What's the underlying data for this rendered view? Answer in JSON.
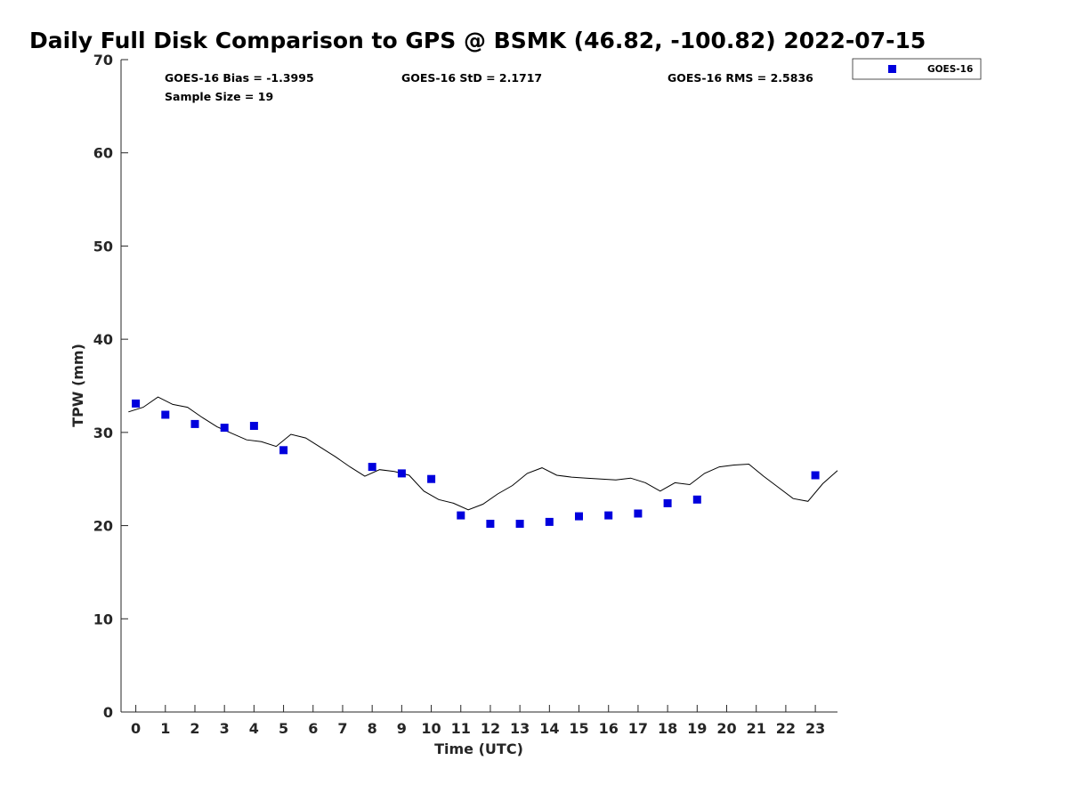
{
  "chart_data": {
    "type": "scatter",
    "title": "Daily Full Disk Comparison to GPS @ BSMK (46.82, -100.82) 2022-07-15",
    "xlabel": "Time (UTC)",
    "ylabel": "TPW (mm)",
    "xlim": [
      -0.5,
      23.75
    ],
    "ylim": [
      0,
      70
    ],
    "xticks": [
      0,
      1,
      2,
      3,
      4,
      5,
      6,
      7,
      8,
      9,
      10,
      11,
      12,
      13,
      14,
      15,
      16,
      17,
      18,
      19,
      20,
      21,
      22,
      23
    ],
    "yticks": [
      0,
      10,
      20,
      30,
      40,
      50,
      60,
      70
    ],
    "grid": false,
    "legend_position": "outside-top-right",
    "stats": {
      "bias": "GOES-16 Bias = -1.3995",
      "std": "GOES-16 StD = 2.1717",
      "rms": "GOES-16 RMS = 2.5836",
      "sample": "Sample Size = 19"
    },
    "series": [
      {
        "name": "GOES-16",
        "kind": "scatter",
        "marker": "square",
        "color": "#0000dd",
        "x": [
          0,
          1,
          2,
          3,
          4,
          5,
          8,
          9,
          10,
          11,
          12,
          13,
          14,
          15,
          16,
          17,
          18,
          19,
          23
        ],
        "y": [
          33.1,
          31.9,
          30.9,
          30.5,
          30.7,
          28.1,
          26.3,
          25.6,
          25.0,
          21.1,
          20.2,
          20.2,
          20.4,
          21.0,
          21.1,
          21.3,
          22.4,
          22.8,
          25.4
        ]
      },
      {
        "kind": "line",
        "color": "#000000",
        "x": [
          -0.25,
          0.25,
          0.75,
          1.25,
          1.75,
          2.25,
          2.75,
          3.25,
          3.75,
          4.25,
          4.75,
          5.25,
          5.75,
          6.25,
          6.75,
          7.25,
          7.75,
          8.25,
          8.75,
          9.25,
          9.75,
          10.25,
          10.75,
          11.25,
          11.75,
          12.25,
          12.75,
          13.25,
          13.75,
          14.25,
          14.75,
          15.25,
          15.75,
          16.25,
          16.75,
          17.25,
          17.75,
          18.25,
          18.75,
          19.25,
          19.75,
          20.25,
          20.75,
          21.25,
          21.75,
          22.25,
          22.75,
          23.25,
          23.75
        ],
        "y": [
          32.2,
          32.7,
          33.8,
          33.0,
          32.7,
          31.6,
          30.6,
          29.9,
          29.2,
          29.0,
          28.5,
          29.8,
          29.4,
          28.4,
          27.4,
          26.3,
          25.3,
          26.0,
          25.8,
          25.4,
          23.7,
          22.8,
          22.4,
          21.7,
          22.3,
          23.4,
          24.3,
          25.6,
          26.2,
          25.4,
          25.2,
          25.1,
          25.0,
          24.9,
          25.1,
          24.6,
          23.7,
          24.6,
          24.4,
          25.6,
          26.3,
          26.5,
          26.6,
          25.3,
          24.1,
          22.9,
          22.6,
          24.5,
          25.9
        ]
      }
    ]
  }
}
